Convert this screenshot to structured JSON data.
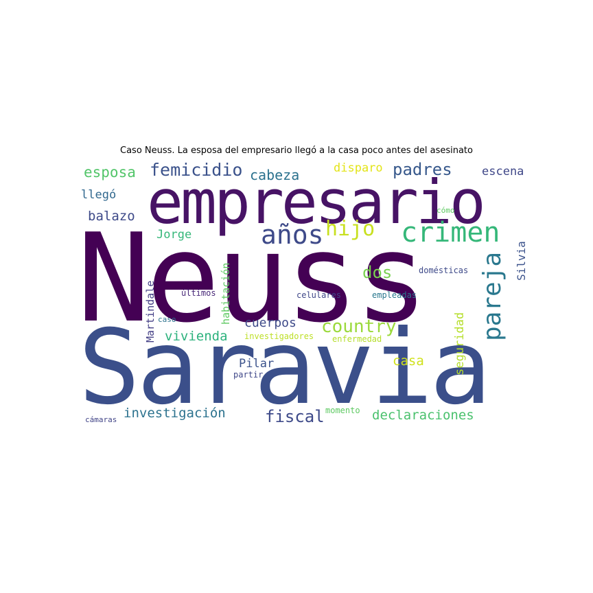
{
  "title": "Caso Neuss. La esposa del empresario llegó a la casa poco antes del asesinato",
  "words": [
    {
      "text": "Neuss",
      "color": "#440154"
    },
    {
      "text": "Saravia",
      "color": "#3b4f8a"
    },
    {
      "text": "empresario",
      "color": "#471365"
    },
    {
      "text": "crimen",
      "color": "#35b779"
    },
    {
      "text": "años",
      "color": "#3e4a89"
    },
    {
      "text": "hijo",
      "color": "#c8e020"
    },
    {
      "text": "pareja",
      "color": "#2a788e"
    },
    {
      "text": "country",
      "color": "#9bd93c"
    },
    {
      "text": "femicidio",
      "color": "#3b528b"
    },
    {
      "text": "padres",
      "color": "#38598c"
    },
    {
      "text": "esposa",
      "color": "#52c569"
    },
    {
      "text": "cabeza",
      "color": "#2c728e"
    },
    {
      "text": "disparo",
      "color": "#e3e418"
    },
    {
      "text": "escena",
      "color": "#3f4788"
    },
    {
      "text": "llegó",
      "color": "#31688e"
    },
    {
      "text": "balazo",
      "color": "#3e4a89"
    },
    {
      "text": "Jorge",
      "color": "#35b779"
    },
    {
      "text": "dos",
      "color": "#7ad151"
    },
    {
      "text": "Silvia",
      "color": "#3b528b"
    },
    {
      "text": "domésticas",
      "color": "#3e4a89"
    },
    {
      "text": "empleadas",
      "color": "#2a788e"
    },
    {
      "text": "celulares",
      "color": "#3f4788"
    },
    {
      "text": "últimos",
      "color": "#482878"
    },
    {
      "text": "Martindale",
      "color": "#433e85"
    },
    {
      "text": "habitación",
      "color": "#5ec962"
    },
    {
      "text": "seguridad",
      "color": "#b5de2b"
    },
    {
      "text": "cuerpos",
      "color": "#3e4a89"
    },
    {
      "text": "vivienda",
      "color": "#2db27d"
    },
    {
      "text": "investigadores",
      "color": "#bddf26"
    },
    {
      "text": "enfermedad",
      "color": "#b5de2b"
    },
    {
      "text": "caso",
      "color": "#2c728e"
    },
    {
      "text": "Pilar",
      "color": "#3b528b"
    },
    {
      "text": "casa",
      "color": "#d0e11c"
    },
    {
      "text": "partir",
      "color": "#3f4788"
    },
    {
      "text": "investigación",
      "color": "#2c728e"
    },
    {
      "text": "fiscal",
      "color": "#3e4a89"
    },
    {
      "text": "declaraciones",
      "color": "#4ac16d"
    },
    {
      "text": "cámaras",
      "color": "#414487"
    },
    {
      "text": "momento",
      "color": "#5ec962"
    },
    {
      "text": "cómo",
      "color": "#5ec962"
    }
  ]
}
